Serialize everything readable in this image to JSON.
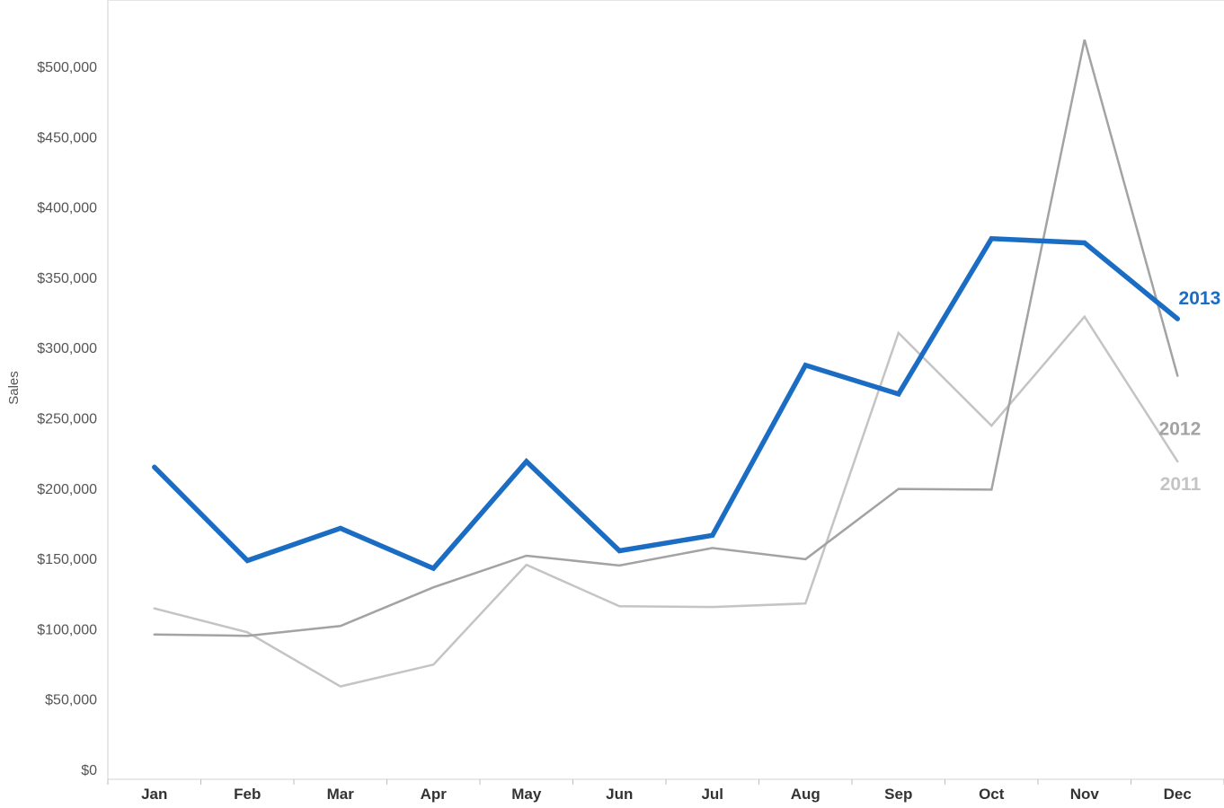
{
  "chart_data": {
    "type": "line",
    "title": "",
    "xlabel": "",
    "ylabel": "Sales",
    "categories": [
      "Jan",
      "Feb",
      "Mar",
      "Apr",
      "May",
      "Jun",
      "Jul",
      "Aug",
      "Sep",
      "Oct",
      "Nov",
      "Dec"
    ],
    "ylim": [
      0,
      540000
    ],
    "yticks": [
      0,
      50000,
      100000,
      150000,
      200000,
      250000,
      300000,
      350000,
      400000,
      450000,
      500000
    ],
    "ytick_labels": [
      "$0",
      "$50,000",
      "$100,000",
      "$150,000",
      "$200,000",
      "$250,000",
      "$300,000",
      "$350,000",
      "$400,000",
      "$450,000",
      "$500,000"
    ],
    "grid": false,
    "legend": "end-of-line labels",
    "series": [
      {
        "name": "2011",
        "color": "#c4c4c4",
        "values": [
          114500,
          97500,
          59000,
          74500,
          145500,
          116000,
          115500,
          118000,
          310500,
          244500,
          322000,
          219000
        ]
      },
      {
        "name": "2012",
        "color": "#a3a3a3",
        "values": [
          96000,
          95000,
          102000,
          129500,
          152000,
          145000,
          157500,
          149500,
          199500,
          199000,
          519000,
          280000
        ]
      },
      {
        "name": "2013",
        "color": "#1a6dc2",
        "values": [
          215000,
          148500,
          171500,
          143000,
          219000,
          155500,
          166500,
          287500,
          267000,
          377500,
          374500,
          320500
        ]
      }
    ]
  }
}
